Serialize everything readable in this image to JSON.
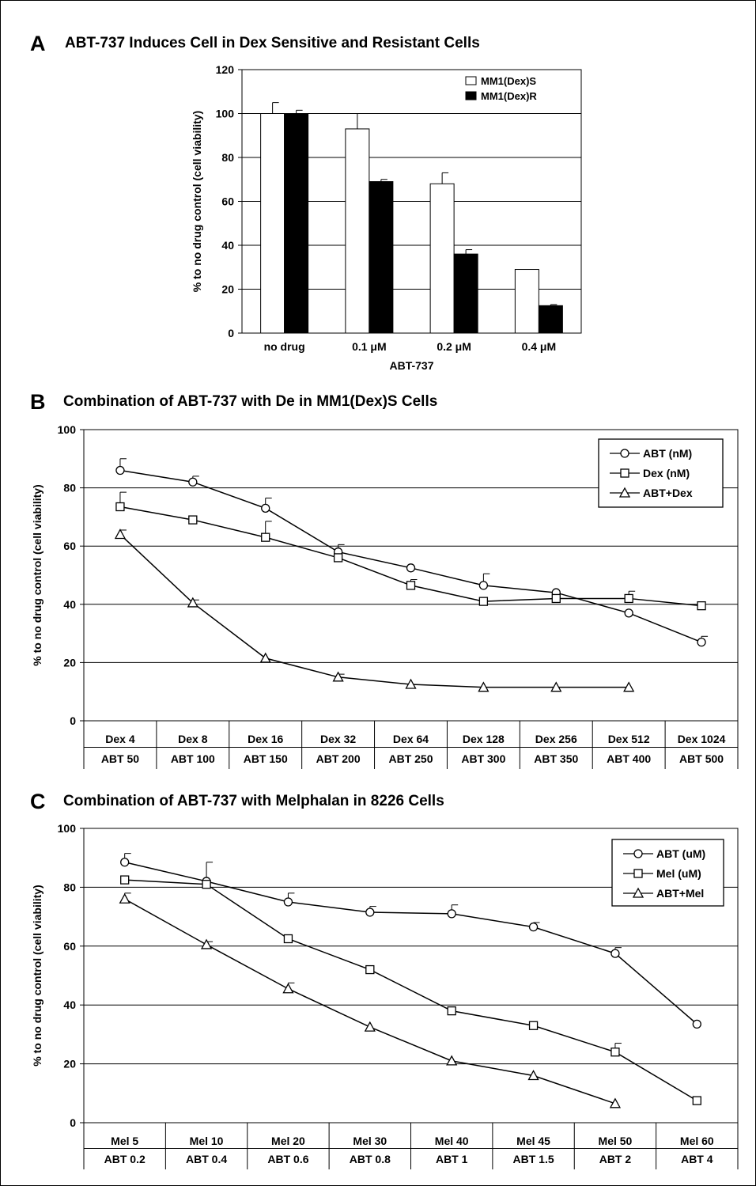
{
  "panels": [
    {
      "letter": "A",
      "title": "ABT-737 Induces Cell in Dex Sensitive and Resistant Cells"
    },
    {
      "letter": "B",
      "title": "Combination of ABT-737 with De in MM1(Dex)S Cells"
    },
    {
      "letter": "C",
      "title": "Combination of ABT-737 with Melphalan in 8226 Cells"
    }
  ],
  "colors": {
    "axis": "#000000",
    "grid": "#000000",
    "bar_s": "#ffffff",
    "bar_r": "#000000",
    "chart_bg": "#ffffff"
  },
  "chart_data": [
    {
      "type": "bar",
      "title": "ABT-737 Induces Cell in Dex Sensitive and Resistant Cells",
      "categories": [
        "no drug",
        "0.1 μM",
        "0.2 μM",
        "0.4 μM"
      ],
      "xlabel": "ABT-737",
      "ylabel": "% to no drug control (cell viability)",
      "ylim": [
        0,
        120
      ],
      "yticks": [
        "0",
        "20",
        "40",
        "60",
        "80",
        "100",
        "120"
      ],
      "grid": true,
      "legend_position": "top-right",
      "series": [
        {
          "name": "MM1(Dex)S",
          "values": [
            100,
            93,
            68,
            29
          ],
          "errors": [
            5,
            7,
            5,
            0
          ]
        },
        {
          "name": "MM1(Dex)R",
          "values": [
            100,
            69,
            36,
            12.5
          ],
          "errors": [
            1.5,
            1,
            2,
            0.5
          ]
        }
      ]
    },
    {
      "type": "line",
      "title": "Combination of ABT-737 with De in MM1(Dex)S Cells",
      "ylabel": "% to no drug control (cell viability)",
      "ylim": [
        0,
        100
      ],
      "yticks": [
        "0",
        "20",
        "40",
        "60",
        "80",
        "100"
      ],
      "grid": true,
      "legend_position": "top-right",
      "categories": [
        [
          "Dex 4",
          "ABT 50"
        ],
        [
          "Dex 8",
          "ABT 100"
        ],
        [
          "Dex 16",
          "ABT 150"
        ],
        [
          "Dex 32",
          "ABT 200"
        ],
        [
          "Dex 64",
          "ABT 250"
        ],
        [
          "Dex 128",
          "ABT 300"
        ],
        [
          "Dex 256",
          "ABT 350"
        ],
        [
          "Dex 512",
          "ABT 400"
        ],
        [
          "Dex 1024",
          "ABT 500"
        ]
      ],
      "series": [
        {
          "name": "ABT (nM)",
          "marker": "circle",
          "values": [
            86,
            82,
            73,
            58,
            52.5,
            46.5,
            44,
            37,
            27
          ],
          "errors": [
            4,
            2,
            3.5,
            2.5,
            0,
            4,
            0,
            0,
            2
          ]
        },
        {
          "name": "Dex (nM)",
          "marker": "square",
          "values": [
            73.5,
            69,
            63,
            56,
            46.5,
            41,
            42,
            42,
            39.5
          ],
          "errors": [
            5,
            0,
            5.5,
            0,
            2,
            0,
            0,
            2.5,
            0
          ]
        },
        {
          "name": "ABT+Dex",
          "marker": "triangle",
          "values": [
            64,
            40.5,
            21.5,
            15,
            12.5,
            11.5,
            11.5,
            11.5,
            null
          ],
          "errors": [
            1.5,
            1,
            0,
            1,
            0,
            0,
            0,
            0,
            0
          ]
        }
      ]
    },
    {
      "type": "line",
      "title": "Combination of ABT-737 with Melphalan in 8226 Cells",
      "ylabel": "% to no drug control (cell viability)",
      "ylim": [
        0,
        100
      ],
      "yticks": [
        "0",
        "20",
        "40",
        "60",
        "80",
        "100"
      ],
      "grid": true,
      "legend_position": "top-right",
      "categories": [
        [
          "Mel 5",
          "ABT 0.2"
        ],
        [
          "Mel 10",
          "ABT 0.4"
        ],
        [
          "Mel 20",
          "ABT 0.6"
        ],
        [
          "Mel 30",
          "ABT 0.8"
        ],
        [
          "Mel 40",
          "ABT 1"
        ],
        [
          "Mel 45",
          "ABT 1.5"
        ],
        [
          "Mel 50",
          "ABT 2"
        ],
        [
          "Mel 60",
          "ABT 4"
        ]
      ],
      "series": [
        {
          "name": "ABT (uM)",
          "marker": "circle",
          "values": [
            88.5,
            82,
            75,
            71.5,
            71,
            66.5,
            57.5,
            33.5
          ],
          "errors": [
            3,
            6.5,
            3,
            2,
            3,
            1.5,
            2,
            0
          ]
        },
        {
          "name": "Mel (uM)",
          "marker": "square",
          "values": [
            82.5,
            81,
            62.5,
            52,
            38,
            33,
            24,
            7.5
          ],
          "errors": [
            0,
            0,
            0,
            0,
            0,
            0,
            3,
            0
          ]
        },
        {
          "name": "ABT+Mel",
          "marker": "triangle",
          "values": [
            76,
            60.5,
            45.5,
            32.5,
            21,
            16,
            6.5,
            null
          ],
          "errors": [
            2,
            1,
            2,
            0,
            0,
            0,
            0,
            0
          ]
        }
      ]
    }
  ]
}
